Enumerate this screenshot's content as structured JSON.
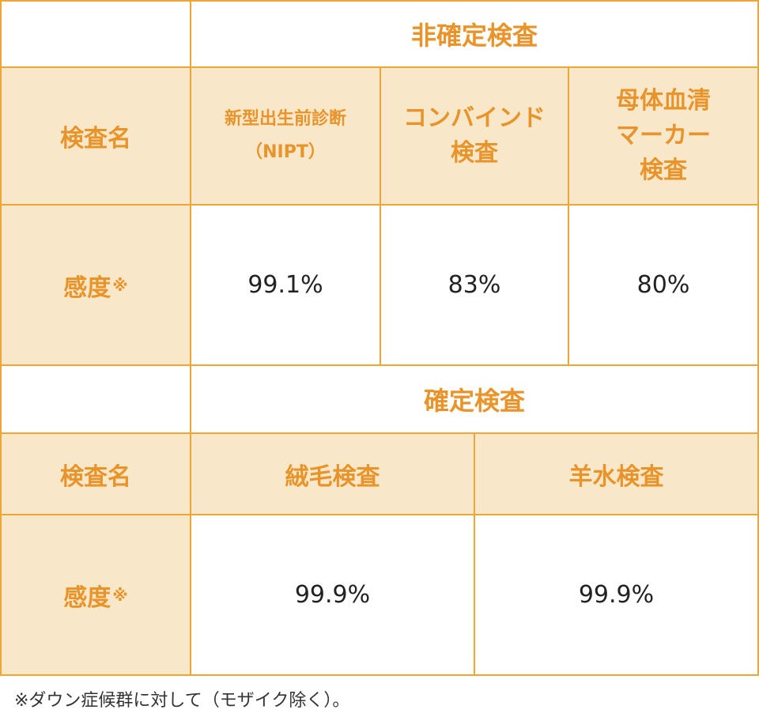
{
  "non_definitive": {
    "title": "非確定検査",
    "row_label_name": "検査名",
    "row_label_sensitivity": "感度",
    "sensitivity_mark": "※",
    "tests": [
      {
        "name_line1": "新型出生前診断",
        "name_line2": "（NIPT）",
        "sensitivity": "99.1%"
      },
      {
        "name_line1": "コンバインド",
        "name_line2": "検査",
        "sensitivity": "83%"
      },
      {
        "name_line1": "母体血清",
        "name_line2": "マーカー",
        "name_line3": "検査",
        "sensitivity": "80%"
      }
    ]
  },
  "definitive": {
    "title": "確定検査",
    "row_label_name": "検査名",
    "row_label_sensitivity": "感度",
    "sensitivity_mark": "※",
    "tests": [
      {
        "name": "絨毛検査",
        "sensitivity": "99.9%"
      },
      {
        "name": "羊水検査",
        "sensitivity": "99.9%"
      }
    ]
  },
  "footnote": "※ダウン症候群に対して（モザイク除く）。",
  "colors": {
    "border": "#f0a634",
    "header_bg": "#f8e7c8",
    "accent_text": "#e8942b"
  }
}
